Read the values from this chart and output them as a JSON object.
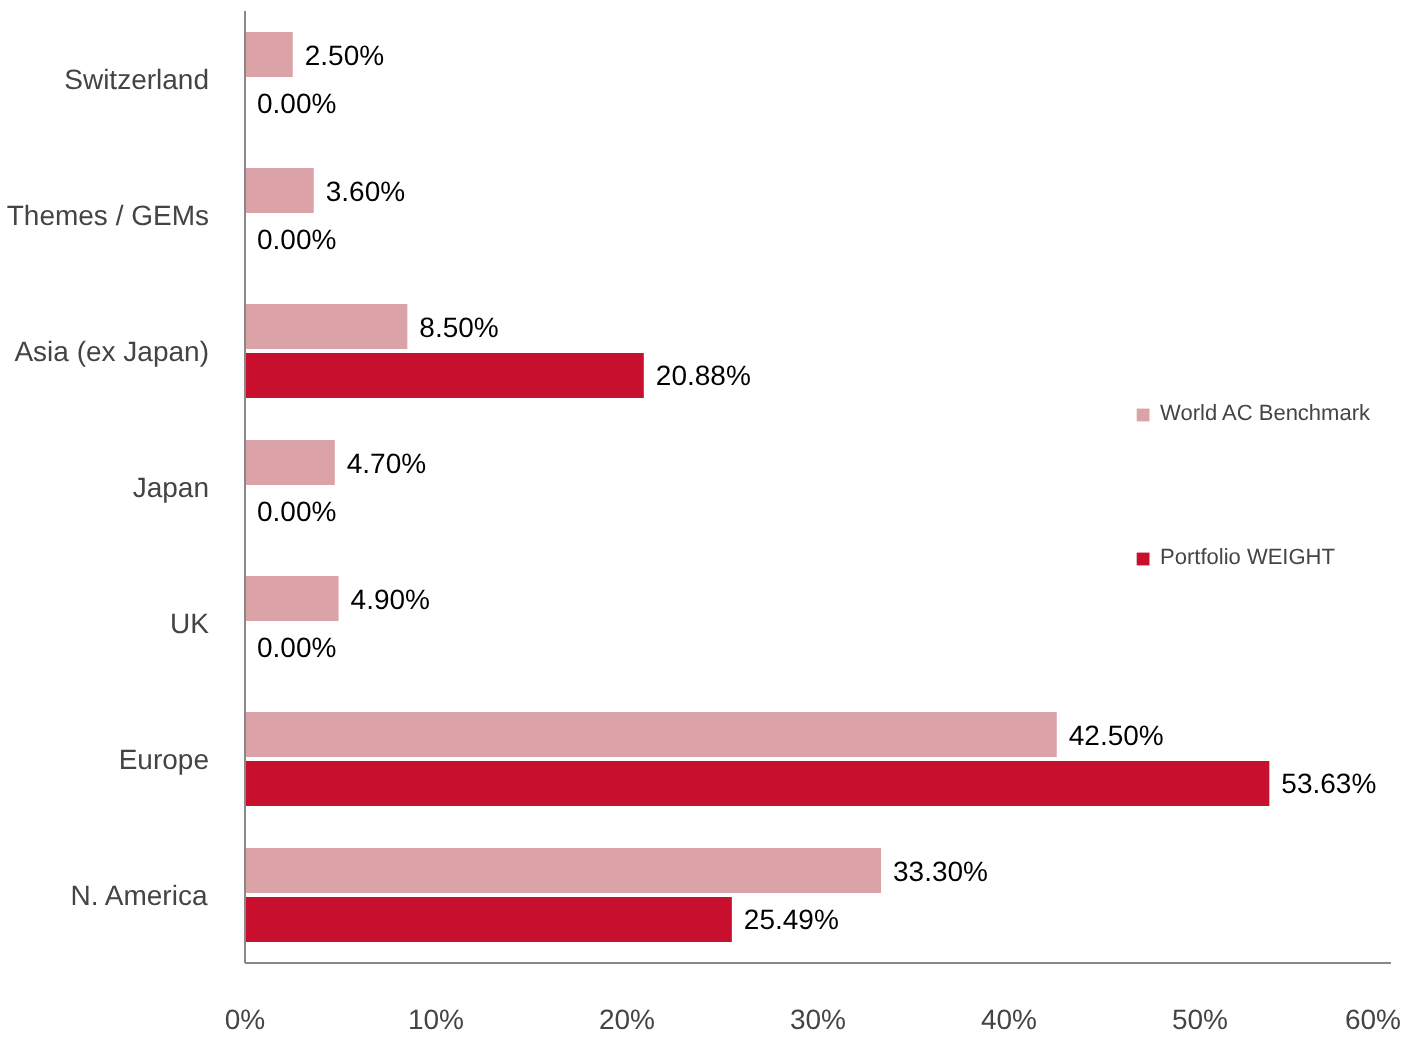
{
  "chart_data": {
    "type": "bar",
    "orientation": "horizontal",
    "categories": [
      "Switzerland",
      "Themes / GEMs",
      "Asia (ex Japan)",
      "Japan",
      "UK",
      "Europe",
      "N. America"
    ],
    "series": [
      {
        "name": "World AC Benchmark",
        "color": "#dba3a8",
        "values": [
          2.5,
          3.6,
          8.5,
          4.7,
          4.9,
          42.5,
          33.3
        ],
        "value_labels": [
          "2.50%",
          "3.60%",
          "8.50%",
          "4.70%",
          "4.90%",
          "42.50%",
          "33.30%"
        ]
      },
      {
        "name": "Portfolio WEIGHT",
        "color": "#c8102e",
        "values": [
          0,
          0,
          20.88,
          0,
          0,
          53.63,
          25.49
        ],
        "value_labels": [
          "0.00%",
          "0.00%",
          "20.88%",
          "0.00%",
          "0.00%",
          "53.63%",
          "25.49%"
        ]
      }
    ],
    "xlim": [
      0,
      60
    ],
    "xticks": [
      {
        "value": 0,
        "label": "0%"
      },
      {
        "value": 10,
        "label": "10%"
      },
      {
        "value": 20,
        "label": "20%"
      },
      {
        "value": 30,
        "label": "30%"
      },
      {
        "value": 40,
        "label": "40%"
      },
      {
        "value": 50,
        "label": "50%"
      },
      {
        "value": 60,
        "label": "60%"
      }
    ],
    "grid": false,
    "legend": "right"
  }
}
